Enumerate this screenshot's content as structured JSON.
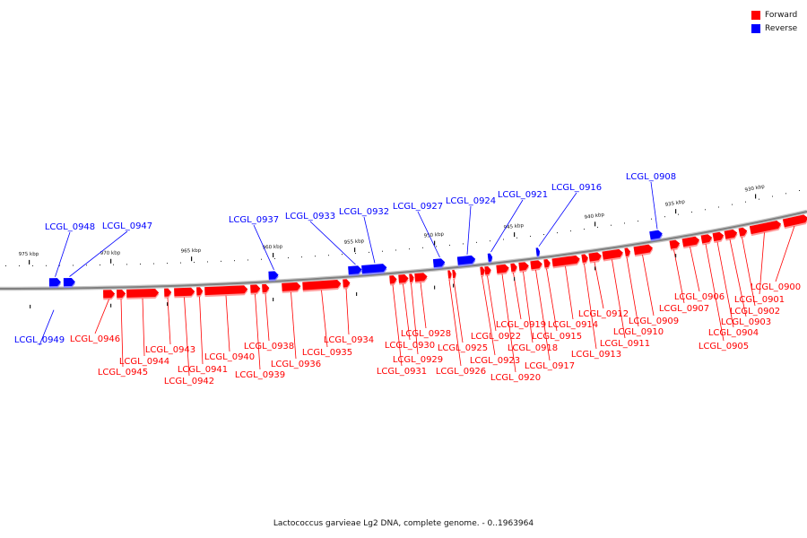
{
  "legend": [
    {
      "label": "Forward",
      "color": "#ff0000"
    },
    {
      "label": "Reverse",
      "color": "#0000ff"
    }
  ],
  "caption": "Lactococcus garvieae Lg2 DNA, complete genome. - 0..1963964",
  "colors": {
    "forward": "#ff0000",
    "reverse": "#0000ff",
    "backbone": "#808080"
  },
  "scale": {
    "unit": "kbp",
    "labels": [
      "975 kbp",
      "970 kbp",
      "965 kbp",
      "960 kbp",
      "955 kbp",
      "950 kbp",
      "945 kbp",
      "940 kbp",
      "935 kbp",
      "930 kbp"
    ]
  },
  "genes": [
    {
      "id": "LCGL_0949",
      "strand": "reverse"
    },
    {
      "id": "LCGL_0948",
      "strand": "reverse"
    },
    {
      "id": "LCGL_0947",
      "strand": "reverse"
    },
    {
      "id": "LCGL_0946",
      "strand": "forward"
    },
    {
      "id": "LCGL_0945",
      "strand": "forward"
    },
    {
      "id": "LCGL_0944",
      "strand": "forward"
    },
    {
      "id": "LCGL_0943",
      "strand": "forward"
    },
    {
      "id": "LCGL_0942",
      "strand": "forward"
    },
    {
      "id": "LCGL_0941",
      "strand": "forward"
    },
    {
      "id": "LCGL_0940",
      "strand": "forward"
    },
    {
      "id": "LCGL_0939",
      "strand": "forward"
    },
    {
      "id": "LCGL_0938",
      "strand": "forward"
    },
    {
      "id": "LCGL_0937",
      "strand": "reverse"
    },
    {
      "id": "LCGL_0936",
      "strand": "forward"
    },
    {
      "id": "LCGL_0935",
      "strand": "forward"
    },
    {
      "id": "LCGL_0934",
      "strand": "forward"
    },
    {
      "id": "LCGL_0933",
      "strand": "reverse"
    },
    {
      "id": "LCGL_0932",
      "strand": "reverse"
    },
    {
      "id": "LCGL_0931",
      "strand": "forward"
    },
    {
      "id": "LCGL_0930",
      "strand": "forward"
    },
    {
      "id": "LCGL_0929",
      "strand": "forward"
    },
    {
      "id": "LCGL_0928",
      "strand": "forward"
    },
    {
      "id": "LCGL_0927",
      "strand": "reverse"
    },
    {
      "id": "LCGL_0926",
      "strand": "forward"
    },
    {
      "id": "LCGL_0925",
      "strand": "forward"
    },
    {
      "id": "LCGL_0924",
      "strand": "reverse"
    },
    {
      "id": "LCGL_0923",
      "strand": "forward"
    },
    {
      "id": "LCGL_0922",
      "strand": "forward"
    },
    {
      "id": "LCGL_0921",
      "strand": "reverse"
    },
    {
      "id": "LCGL_0920",
      "strand": "forward"
    },
    {
      "id": "LCGL_0919",
      "strand": "forward"
    },
    {
      "id": "LCGL_0918",
      "strand": "forward"
    },
    {
      "id": "LCGL_0917",
      "strand": "forward"
    },
    {
      "id": "LCGL_0916",
      "strand": "reverse"
    },
    {
      "id": "LCGL_0915",
      "strand": "forward"
    },
    {
      "id": "LCGL_0914",
      "strand": "forward"
    },
    {
      "id": "LCGL_0913",
      "strand": "forward"
    },
    {
      "id": "LCGL_0912",
      "strand": "forward"
    },
    {
      "id": "LCGL_0911",
      "strand": "forward"
    },
    {
      "id": "LCGL_0910",
      "strand": "forward"
    },
    {
      "id": "LCGL_0909",
      "strand": "forward"
    },
    {
      "id": "LCGL_0908",
      "strand": "reverse"
    },
    {
      "id": "LCGL_0907",
      "strand": "forward"
    },
    {
      "id": "LCGL_0906",
      "strand": "forward"
    },
    {
      "id": "LCGL_0905",
      "strand": "forward"
    },
    {
      "id": "LCGL_0904",
      "strand": "forward"
    },
    {
      "id": "LCGL_0903",
      "strand": "forward"
    },
    {
      "id": "LCGL_0902",
      "strand": "forward"
    },
    {
      "id": "LCGL_0901",
      "strand": "forward"
    },
    {
      "id": "LCGL_0900",
      "strand": "forward"
    }
  ]
}
